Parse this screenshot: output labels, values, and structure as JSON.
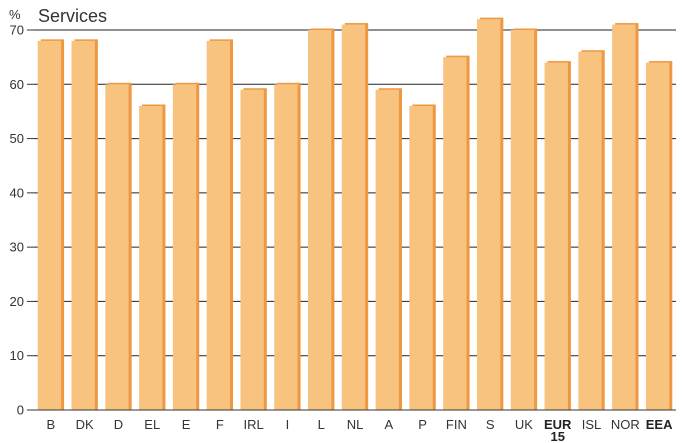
{
  "chart_data": {
    "type": "bar",
    "title": "Services",
    "unit_label": "%",
    "xlabel": "",
    "ylabel": "",
    "ylim": [
      0,
      70
    ],
    "yticks": [
      0,
      10,
      20,
      30,
      40,
      50,
      60,
      70
    ],
    "grid": true,
    "categories": [
      "B",
      "DK",
      "D",
      "EL",
      "E",
      "F",
      "IRL",
      "I",
      "L",
      "NL",
      "A",
      "P",
      "FIN",
      "S",
      "UK",
      "EUR 15",
      "ISL",
      "NOR",
      "EEA"
    ],
    "bold_categories": [
      "EUR 15",
      "EEA"
    ],
    "values": [
      68,
      68,
      60,
      56,
      60,
      68,
      59,
      60,
      70,
      71,
      59,
      56,
      65,
      72,
      70,
      64,
      66,
      71,
      64
    ],
    "colors": {
      "bar": "#f8c27f",
      "bar_shadow": "#ee9842",
      "grid": "#222222",
      "axis": "#333333"
    }
  }
}
